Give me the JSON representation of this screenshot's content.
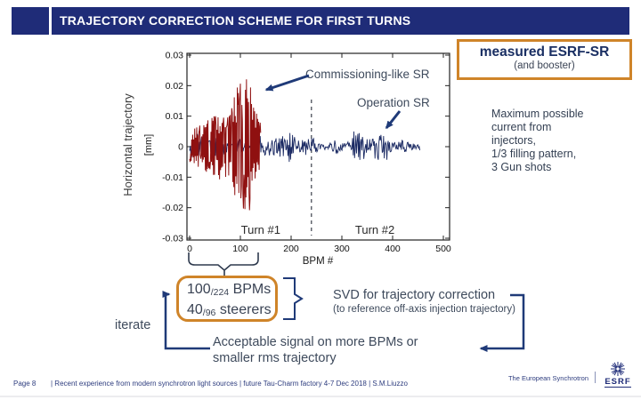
{
  "slide": {
    "title": "TRAJECTORY CORRECTION SCHEME FOR FIRST TURNS"
  },
  "measured_box": {
    "line1": "measured ESRF-SR",
    "line2": "(and booster)"
  },
  "notes": {
    "max_current": "Maximum possible\ncurrent from\ninjectors,\n1/3 filling pattern,\n3 Gun shots"
  },
  "chart_data": {
    "type": "line",
    "title": "",
    "xlabel": "BPM #",
    "ylabel": "Horizontal trajectory",
    "ylabel_units": "[mm]",
    "xlim": [
      0,
      512
    ],
    "ylim": [
      -0.03,
      0.03
    ],
    "xticks": [
      0,
      100,
      200,
      300,
      400,
      500
    ],
    "yticks": [
      0.03,
      0.02,
      0.01,
      0,
      -0.01,
      -0.02,
      -0.03
    ],
    "grid": false,
    "turn_divider_bpm": 240,
    "region_labels": [
      {
        "label": "Turn #1",
        "bpm": 140
      },
      {
        "label": "Turn #2",
        "bpm": 365
      }
    ],
    "series": [
      {
        "name": "Commissioning-like SR",
        "color": "#8f1010",
        "bpm_range": [
          0,
          140
        ],
        "amplitude_envelope_mm": [
          [
            0,
            0.005
          ],
          [
            30,
            0.008
          ],
          [
            55,
            0.011
          ],
          [
            80,
            0.012
          ],
          [
            92,
            0.02
          ],
          [
            108,
            0.023
          ],
          [
            118,
            0.021
          ],
          [
            128,
            0.013
          ],
          [
            140,
            0.009
          ]
        ]
      },
      {
        "name": "Operation SR",
        "color": "#1b2a63",
        "bpm_range": [
          0,
          455
        ],
        "amplitude_mm": 0.0028
      }
    ]
  },
  "bpm_box": {
    "line1_big": "100",
    "line1_small": "/224",
    "line1_rest": " BPMs",
    "line2_big": "40",
    "line2_small": "/96",
    "line2_rest": " steerers"
  },
  "flow": {
    "iterate": "iterate",
    "svd": "SVD for trajectory correction",
    "svd_sub": "(to reference off-axis injection trajectory)",
    "acceptable": "Acceptable signal on more BPMs or\nsmaller rms trajectory"
  },
  "footer": {
    "page": "Page 8",
    "credits": "| Recent experience from modern synchrotron light sources | future Tau-Charm factory 4-7 Dec 2018 | S.M.Liuzzo",
    "brand": "The European Synchrotron",
    "logo": "ESRF"
  },
  "colors": {
    "banner_navy": "#1f2c78",
    "accent_orange": "#cf8429",
    "trace_red": "#8f1010",
    "trace_navy": "#1b2a63",
    "connector_navy": "#1f3a78",
    "text_dark": "#3e4a5c",
    "footer_navy": "#2d3c7e"
  }
}
